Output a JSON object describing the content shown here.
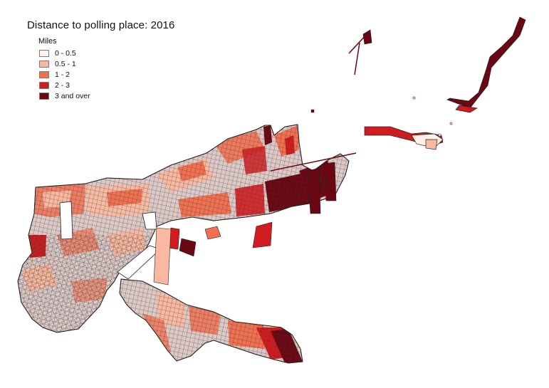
{
  "title": "Distance to polling place: 2016",
  "legend": {
    "title": "Miles",
    "items": [
      {
        "label": "0 - 0.5",
        "color": "#fdf1ea"
      },
      {
        "label": "0.5 - 1",
        "color": "#f9b89f"
      },
      {
        "label": "1 - 2",
        "color": "#f07050"
      },
      {
        "label": "2 - 3",
        "color": "#d01c1e"
      },
      {
        "label": "3 and over",
        "color": "#6a0712"
      }
    ]
  },
  "map": {
    "land_base_color": "#d8c4c2",
    "outline_color": "#2b2b2b"
  }
}
